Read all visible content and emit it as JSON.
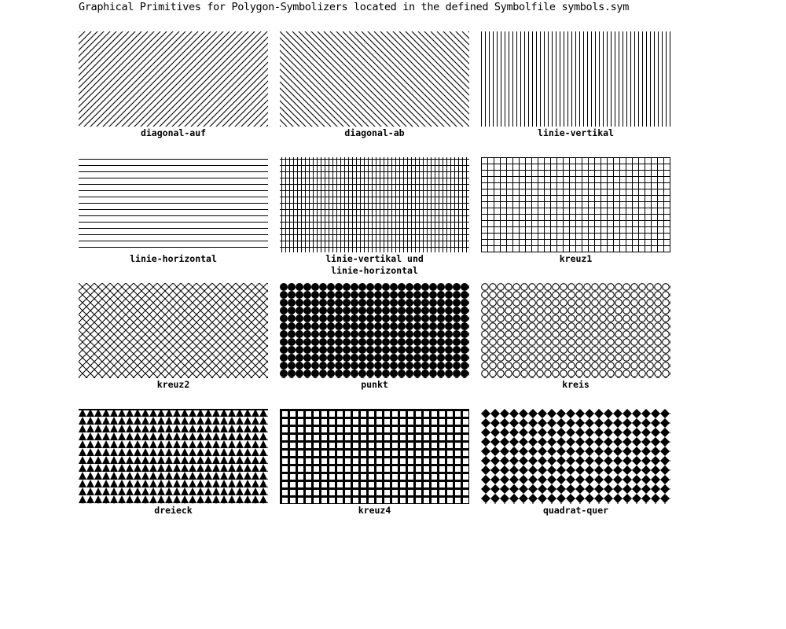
{
  "title": "Graphical Primitives for Polygon-Symbolizers located in the defined Symbolfile symbols.sym",
  "colors": {
    "foreground": "#000000",
    "background": "#ffffff"
  },
  "symbols": [
    {
      "id": "diagonal-auf",
      "label": "diagonal-auf",
      "pattern": "diagonal-up"
    },
    {
      "id": "diagonal-ab",
      "label": "diagonal-ab",
      "pattern": "diagonal-down"
    },
    {
      "id": "linie-vertikal",
      "label": "linie-vertikal",
      "pattern": "vertical-lines"
    },
    {
      "id": "linie-horizontal",
      "label": "linie-horizontal",
      "pattern": "horizontal-lines"
    },
    {
      "id": "linie-vertikal-und-linie-horizontal",
      "label": "linie-vertikal und\nlinie-horizontal",
      "pattern": "fine-grid"
    },
    {
      "id": "kreuz1",
      "label": "kreuz1",
      "pattern": "grid"
    },
    {
      "id": "kreuz2",
      "label": "kreuz2",
      "pattern": "diagonal-cross"
    },
    {
      "id": "punkt",
      "label": "punkt",
      "pattern": "filled-dots"
    },
    {
      "id": "kreis",
      "label": "kreis",
      "pattern": "circles"
    },
    {
      "id": "dreieck",
      "label": "dreieck",
      "pattern": "triangles"
    },
    {
      "id": "kreuz4",
      "label": "kreuz4",
      "pattern": "thick-grid"
    },
    {
      "id": "quadrat-quer",
      "label": "quadrat-quer",
      "pattern": "diamonds"
    }
  ]
}
